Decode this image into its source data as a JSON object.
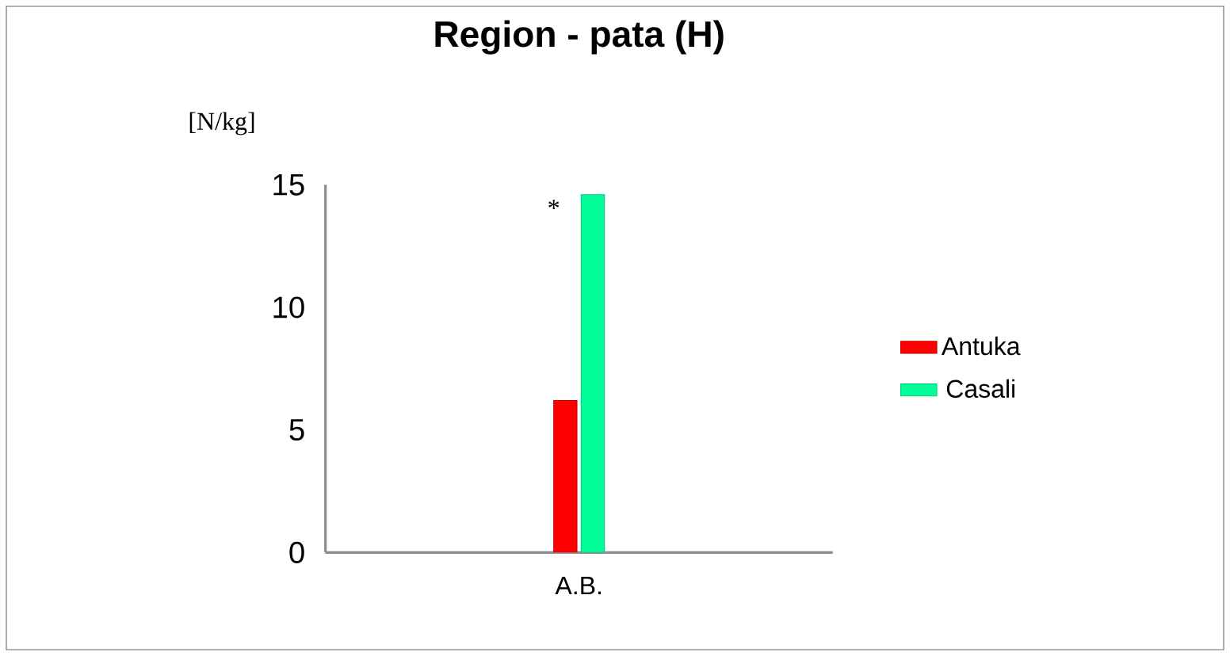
{
  "chart_data": {
    "type": "bar",
    "title": "Region - pata (H)",
    "ylabel": "[N/kg]",
    "categories": [
      "A.B."
    ],
    "series": [
      {
        "name": "Antuka",
        "color": "#ff0000",
        "values": [
          6.2
        ]
      },
      {
        "name": "Casali",
        "color": "#00ff99",
        "values": [
          14.6
        ]
      }
    ],
    "ylim": [
      0,
      15
    ],
    "yticks": [
      0,
      5,
      10,
      15
    ],
    "grid": false,
    "legend": "right",
    "annotations": [
      "*"
    ]
  }
}
